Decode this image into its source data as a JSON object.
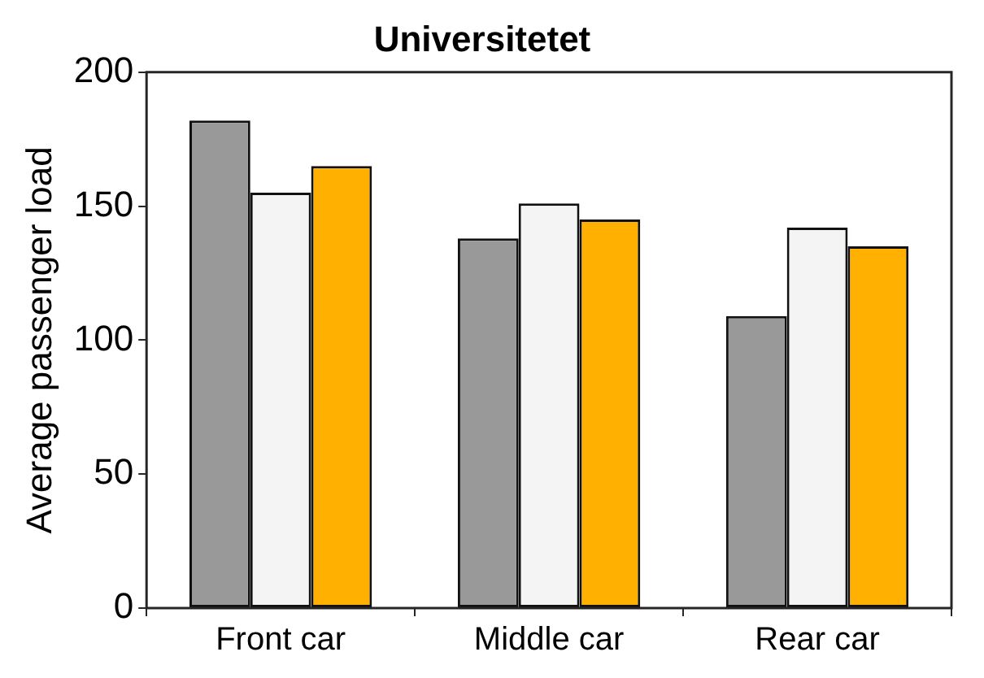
{
  "chart_data": {
    "type": "bar",
    "title": "Universitetet",
    "ylabel": "Average passenger load",
    "categories": [
      "Front car",
      "Middle car",
      "Rear car"
    ],
    "series": [
      {
        "color": "#999999",
        "values": [
          182,
          138,
          109
        ]
      },
      {
        "color": "#f4f4f4",
        "values": [
          155,
          151,
          142
        ]
      },
      {
        "color": "#ffb000",
        "values": [
          165,
          145,
          135
        ]
      }
    ],
    "ylim": [
      0,
      200
    ],
    "yticks": [
      0,
      50,
      100,
      150,
      200
    ],
    "grid": false,
    "legend": false
  }
}
